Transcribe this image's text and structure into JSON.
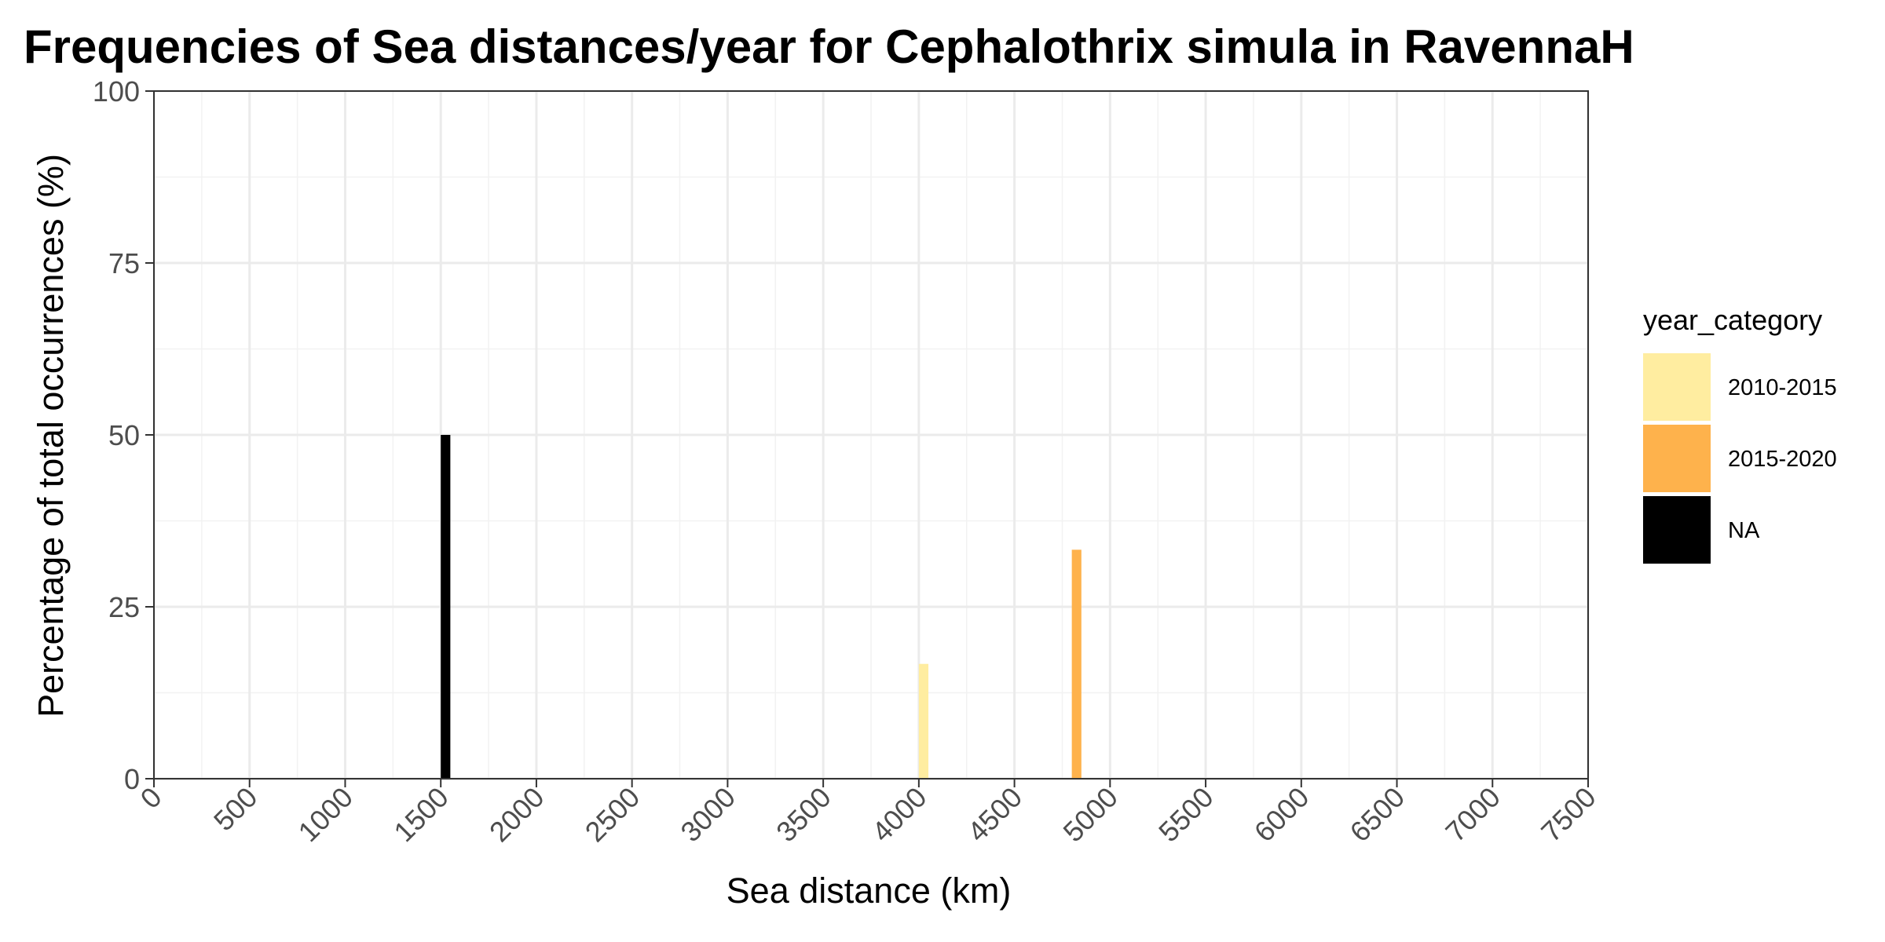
{
  "chart_data": {
    "type": "bar",
    "title": "Frequencies of Sea distances/year for Cephalothrix simula in RavennaH",
    "xlabel": "Sea distance (km)",
    "ylabel": "Percentage of total occurrences (%)",
    "xlim": [
      0,
      7500
    ],
    "ylim": [
      0,
      100
    ],
    "x_ticks": [
      0,
      500,
      1000,
      1500,
      2000,
      2500,
      3000,
      3500,
      4000,
      4500,
      5000,
      5500,
      6000,
      6500,
      7000,
      7500
    ],
    "y_ticks": [
      0,
      25,
      50,
      75,
      100
    ],
    "bin_width": 50,
    "grid": true,
    "legend": {
      "title": "year_category",
      "position": "right",
      "entries": [
        {
          "label": "2010-2015",
          "color": "#FFEDA0"
        },
        {
          "label": "2015-2020",
          "color": "#FEB24C"
        },
        {
          "label": "NA",
          "color": "#000000"
        }
      ]
    },
    "series": [
      {
        "name": "2010-2015",
        "color": "#FFEDA0",
        "points": [
          {
            "x": 4025,
            "y": 16.7
          }
        ]
      },
      {
        "name": "2015-2020",
        "color": "#FEB24C",
        "points": [
          {
            "x": 4825,
            "y": 33.3
          }
        ]
      },
      {
        "name": "NA",
        "color": "#000000",
        "points": [
          {
            "x": 1525,
            "y": 50
          }
        ]
      }
    ]
  }
}
